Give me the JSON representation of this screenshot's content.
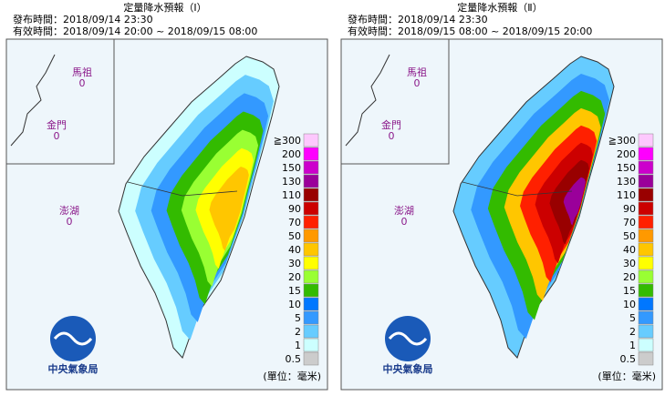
{
  "panels": [
    {
      "title": "定量降水預報（Ⅰ）",
      "issued": "發布時間：2018/09/14 23:30",
      "valid": "有效時間：2018/09/14 20:00 ~ 2018/09/15 08:00"
    },
    {
      "title": "定量降水預報（Ⅱ）",
      "issued": "發布時間：2018/09/14 23:30",
      "valid": "有效時間：2018/09/15 08:00 ~ 2018/09/15 20:00"
    }
  ],
  "islands": [
    {
      "name": "馬祖",
      "value": 0
    },
    {
      "name": "金門",
      "value": 0
    },
    {
      "name": "澎湖",
      "value": 0
    }
  ],
  "legend": {
    "unit": "(單位：毫米)",
    "items": [
      {
        "label": "≧300",
        "color": "#fdc8fd"
      },
      {
        "label": "200",
        "color": "#fe00fe"
      },
      {
        "label": "150",
        "color": "#cc00cc"
      },
      {
        "label": "130",
        "color": "#9a009a"
      },
      {
        "label": "110",
        "color": "#990000"
      },
      {
        "label": "90",
        "color": "#cc0000"
      },
      {
        "label": "70",
        "color": "#ff2000"
      },
      {
        "label": "50",
        "color": "#ff9900"
      },
      {
        "label": "40",
        "color": "#ffc600"
      },
      {
        "label": "30",
        "color": "#ffff00"
      },
      {
        "label": "20",
        "color": "#99ff33"
      },
      {
        "label": "15",
        "color": "#33bb00"
      },
      {
        "label": "10",
        "color": "#0077ff"
      },
      {
        "label": "5",
        "color": "#3399ff"
      },
      {
        "label": "2",
        "color": "#66ccff"
      },
      {
        "label": "1",
        "color": "#ccffff"
      },
      {
        "label": "0.5",
        "color": "#cccccc"
      }
    ]
  },
  "logo": "中央氣象局"
}
